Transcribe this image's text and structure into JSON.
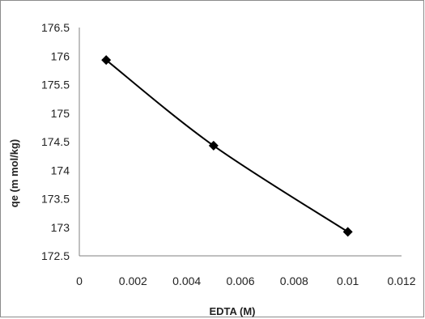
{
  "chart_data": {
    "type": "scatter",
    "title": "",
    "xlabel": "EDTA (M)",
    "ylabel": "qe (m mol/kg)",
    "xlim": [
      0,
      0.012
    ],
    "ylim": [
      172.5,
      176.5
    ],
    "x_ticks": [
      "0",
      "0.002",
      "0.004",
      "0.006",
      "0.008",
      "0.01",
      "0.012"
    ],
    "y_ticks": [
      "172.5",
      "173",
      "173.5",
      "174",
      "174.5",
      "175",
      "175.5",
      "176",
      "176.5"
    ],
    "series": [
      {
        "x": [
          0.001,
          0.005,
          0.01
        ],
        "y": [
          175.93,
          174.43,
          172.92
        ]
      }
    ],
    "marker": "diamond",
    "line": "smooth",
    "colors": {
      "series": "#000000",
      "axis": "#808080",
      "frame": "#8c8c8c"
    },
    "grid": false,
    "legend": "none"
  }
}
